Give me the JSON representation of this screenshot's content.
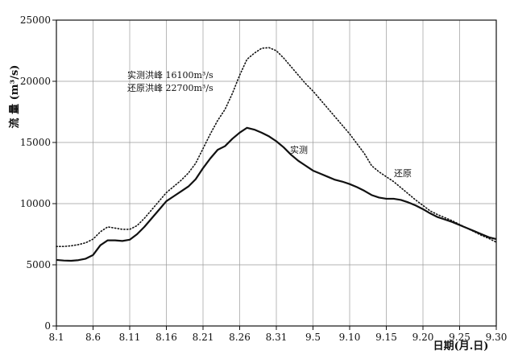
{
  "chart_data": {
    "type": "line",
    "ylabel": "流 量 (m³/s)",
    "xlabel": "日期(月.日)",
    "ylim": [
      0,
      25000
    ],
    "y_ticks": [
      0,
      5000,
      10000,
      15000,
      20000,
      25000
    ],
    "x_ticks": [
      "8.1",
      "8.6",
      "8.11",
      "8.16",
      "8.21",
      "8.26",
      "8.31",
      "9.5",
      "9.10",
      "9.15",
      "9.20",
      "9.25",
      "9.30"
    ],
    "grid": true,
    "annotations": {
      "measured_peak": "实测洪峰 16100m³/s",
      "restored_peak": "还原洪峰 22700m³/s"
    },
    "series": [
      {
        "name": "实测",
        "style": "solid",
        "points": [
          [
            0,
            5400
          ],
          [
            1,
            5350
          ],
          [
            2,
            5330
          ],
          [
            3,
            5380
          ],
          [
            4,
            5500
          ],
          [
            5,
            5800
          ],
          [
            6,
            6600
          ],
          [
            7,
            7000
          ],
          [
            8,
            7000
          ],
          [
            9,
            6950
          ],
          [
            10,
            7050
          ],
          [
            11,
            7500
          ],
          [
            12,
            8100
          ],
          [
            13,
            8800
          ],
          [
            14,
            9500
          ],
          [
            15,
            10200
          ],
          [
            16,
            10600
          ],
          [
            17,
            11000
          ],
          [
            18,
            11400
          ],
          [
            19,
            12000
          ],
          [
            20,
            12900
          ],
          [
            21,
            13700
          ],
          [
            22,
            14400
          ],
          [
            23,
            14700
          ],
          [
            24,
            15300
          ],
          [
            25,
            15800
          ],
          [
            26,
            16200
          ],
          [
            27,
            16050
          ],
          [
            28,
            15800
          ],
          [
            29,
            15500
          ],
          [
            30,
            15100
          ],
          [
            31,
            14600
          ],
          [
            32,
            14000
          ],
          [
            33,
            13500
          ],
          [
            34,
            13100
          ],
          [
            35,
            12700
          ],
          [
            36,
            12450
          ],
          [
            37,
            12200
          ],
          [
            38,
            11950
          ],
          [
            39,
            11800
          ],
          [
            40,
            11600
          ],
          [
            41,
            11350
          ],
          [
            42,
            11050
          ],
          [
            43,
            10700
          ],
          [
            44,
            10500
          ],
          [
            45,
            10400
          ],
          [
            46,
            10400
          ],
          [
            47,
            10300
          ],
          [
            48,
            10100
          ],
          [
            49,
            9850
          ],
          [
            50,
            9550
          ],
          [
            51,
            9200
          ],
          [
            52,
            8900
          ],
          [
            53,
            8700
          ],
          [
            54,
            8500
          ],
          [
            55,
            8250
          ],
          [
            56,
            8000
          ],
          [
            57,
            7750
          ],
          [
            58,
            7500
          ],
          [
            59,
            7250
          ],
          [
            60,
            7100
          ]
        ]
      },
      {
        "name": "还原",
        "style": "dotted",
        "points": [
          [
            0,
            6500
          ],
          [
            1,
            6500
          ],
          [
            2,
            6550
          ],
          [
            3,
            6650
          ],
          [
            4,
            6800
          ],
          [
            5,
            7100
          ],
          [
            6,
            7700
          ],
          [
            7,
            8100
          ],
          [
            8,
            8000
          ],
          [
            9,
            7900
          ],
          [
            10,
            7900
          ],
          [
            11,
            8200
          ],
          [
            12,
            8800
          ],
          [
            13,
            9500
          ],
          [
            14,
            10200
          ],
          [
            15,
            10900
          ],
          [
            16,
            11400
          ],
          [
            17,
            11900
          ],
          [
            18,
            12500
          ],
          [
            19,
            13300
          ],
          [
            20,
            14500
          ],
          [
            21,
            15700
          ],
          [
            22,
            16800
          ],
          [
            23,
            17700
          ],
          [
            24,
            19000
          ],
          [
            25,
            20500
          ],
          [
            26,
            21800
          ],
          [
            27,
            22300
          ],
          [
            28,
            22700
          ],
          [
            29,
            22750
          ],
          [
            30,
            22500
          ],
          [
            31,
            21900
          ],
          [
            32,
            21200
          ],
          [
            33,
            20500
          ],
          [
            34,
            19800
          ],
          [
            35,
            19200
          ],
          [
            36,
            18500
          ],
          [
            37,
            17800
          ],
          [
            38,
            17100
          ],
          [
            39,
            16400
          ],
          [
            40,
            15700
          ],
          [
            41,
            14900
          ],
          [
            42,
            14100
          ],
          [
            43,
            13100
          ],
          [
            44,
            12600
          ],
          [
            45,
            12200
          ],
          [
            46,
            11800
          ],
          [
            47,
            11300
          ],
          [
            48,
            10800
          ],
          [
            49,
            10300
          ],
          [
            50,
            9850
          ],
          [
            51,
            9400
          ],
          [
            52,
            9100
          ],
          [
            53,
            8850
          ],
          [
            54,
            8600
          ],
          [
            55,
            8300
          ],
          [
            56,
            8000
          ],
          [
            57,
            7700
          ],
          [
            58,
            7400
          ],
          [
            59,
            7150
          ],
          [
            60,
            6850
          ]
        ]
      }
    ]
  }
}
